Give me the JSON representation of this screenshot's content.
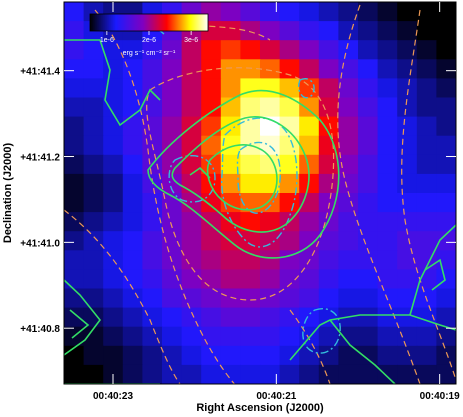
{
  "chart_data": {
    "type": "heatmap",
    "title": "",
    "xlabel": "Right Ascension (J2000)",
    "ylabel": "Declination (J2000)",
    "x_ticks": [
      {
        "label": "00:40:23",
        "value": 23.0
      },
      {
        "label": "00:40:21",
        "value": 21.0
      },
      {
        "label": "00:40:19",
        "value": 19.0
      }
    ],
    "y_ticks": [
      {
        "label": "+41:41.4",
        "value": 41.4
      },
      {
        "label": "+41:41.2",
        "value": 41.2
      },
      {
        "label": "+41:41.0",
        "value": 41.0
      },
      {
        "label": "+41:40.8",
        "value": 40.8
      }
    ],
    "xlim": [
      23.6,
      18.8
    ],
    "ylim": [
      40.67,
      41.56
    ],
    "colorbar": {
      "unit": "erg s⁻¹ cm⁻² sr⁻¹",
      "ticks": [
        {
          "label": "1e-6",
          "value": 1
        },
        {
          "label": "2e-6",
          "value": 2
        },
        {
          "label": "3e-6",
          "value": 3
        }
      ],
      "range": [
        0.6,
        3.4
      ],
      "colormap": [
        "#000000",
        "#1a1aff",
        "#8000c0",
        "#ff0000",
        "#ffff00",
        "#ffffff"
      ]
    },
    "grid_size": [
      20,
      20
    ],
    "intensity_grid": [
      [
        1.2,
        1.0,
        0.9,
        0.9,
        1.1,
        1.3,
        1.6,
        1.8,
        1.7,
        1.5,
        1.3,
        1.2,
        1.1,
        1.0,
        0.9,
        0.8,
        0.7,
        0.6,
        0.6,
        0.6
      ],
      [
        1.3,
        1.1,
        1.0,
        1.0,
        1.2,
        1.5,
        1.9,
        2.1,
        2.1,
        1.9,
        1.7,
        1.5,
        1.3,
        1.2,
        1.0,
        0.9,
        0.8,
        0.7,
        0.6,
        0.6
      ],
      [
        1.3,
        1.2,
        1.1,
        1.1,
        1.3,
        1.6,
        2.0,
        2.3,
        2.4,
        2.3,
        2.1,
        1.9,
        1.7,
        1.4,
        1.2,
        1.0,
        0.9,
        0.8,
        0.7,
        0.6
      ],
      [
        1.2,
        1.2,
        1.1,
        1.2,
        1.4,
        1.7,
        2.0,
        2.3,
        2.6,
        2.6,
        2.5,
        2.3,
        2.0,
        1.7,
        1.4,
        1.2,
        1.0,
        0.9,
        0.8,
        0.7
      ],
      [
        1.1,
        1.1,
        1.1,
        1.2,
        1.4,
        1.7,
        2.0,
        2.3,
        2.6,
        2.9,
        2.9,
        2.7,
        2.4,
        2.0,
        1.6,
        1.3,
        1.1,
        1.0,
        0.9,
        0.8
      ],
      [
        1.0,
        1.0,
        1.1,
        1.2,
        1.4,
        1.7,
        2.0,
        2.3,
        2.7,
        3.1,
        3.2,
        3.0,
        2.6,
        2.1,
        1.7,
        1.4,
        1.2,
        1.0,
        0.9,
        0.9
      ],
      [
        0.9,
        1.0,
        1.1,
        1.3,
        1.5,
        1.8,
        2.1,
        2.4,
        2.8,
        3.2,
        3.4,
        3.2,
        2.8,
        2.3,
        1.8,
        1.5,
        1.2,
        1.1,
        1.0,
        0.9
      ],
      [
        0.9,
        1.0,
        1.1,
        1.3,
        1.5,
        1.8,
        2.1,
        2.5,
        2.9,
        3.2,
        3.3,
        3.1,
        2.7,
        2.2,
        1.8,
        1.5,
        1.2,
        1.1,
        1.0,
        1.0
      ],
      [
        0.8,
        0.9,
        1.0,
        1.2,
        1.5,
        1.8,
        2.1,
        2.4,
        2.8,
        3.0,
        3.1,
        2.9,
        2.5,
        2.1,
        1.7,
        1.4,
        1.2,
        1.1,
        1.0,
        1.0
      ],
      [
        0.7,
        0.8,
        0.9,
        1.1,
        1.4,
        1.7,
        2.0,
        2.3,
        2.6,
        2.8,
        2.8,
        2.6,
        2.3,
        1.9,
        1.6,
        1.4,
        1.2,
        1.1,
        1.1,
        1.1
      ],
      [
        0.7,
        0.8,
        0.9,
        1.1,
        1.3,
        1.6,
        1.9,
        2.2,
        2.4,
        2.5,
        2.5,
        2.3,
        2.0,
        1.7,
        1.5,
        1.3,
        1.2,
        1.2,
        1.2,
        1.2
      ],
      [
        0.8,
        0.9,
        1.0,
        1.1,
        1.3,
        1.6,
        1.8,
        2.0,
        2.2,
        2.3,
        2.2,
        2.0,
        1.8,
        1.6,
        1.4,
        1.3,
        1.3,
        1.3,
        1.3,
        1.3
      ],
      [
        0.9,
        1.0,
        1.1,
        1.2,
        1.4,
        1.6,
        1.8,
        2.0,
        2.1,
        2.1,
        2.0,
        1.9,
        1.7,
        1.5,
        1.4,
        1.3,
        1.3,
        1.4,
        1.4,
        1.4
      ],
      [
        1.0,
        1.0,
        1.1,
        1.2,
        1.4,
        1.6,
        1.8,
        1.9,
        2.0,
        2.0,
        1.9,
        1.7,
        1.6,
        1.4,
        1.3,
        1.3,
        1.3,
        1.4,
        1.4,
        1.3
      ],
      [
        1.0,
        1.0,
        1.1,
        1.2,
        1.3,
        1.5,
        1.7,
        1.8,
        1.9,
        1.9,
        1.8,
        1.6,
        1.5,
        1.3,
        1.2,
        1.2,
        1.3,
        1.3,
        1.3,
        1.2
      ],
      [
        0.9,
        0.9,
        1.0,
        1.1,
        1.2,
        1.4,
        1.5,
        1.6,
        1.7,
        1.7,
        1.6,
        1.5,
        1.4,
        1.2,
        1.1,
        1.1,
        1.2,
        1.2,
        1.2,
        1.1
      ],
      [
        0.8,
        0.8,
        0.9,
        1.0,
        1.1,
        1.2,
        1.3,
        1.4,
        1.5,
        1.5,
        1.4,
        1.3,
        1.2,
        1.1,
        1.0,
        1.0,
        1.1,
        1.1,
        1.1,
        1.0
      ],
      [
        0.7,
        0.7,
        0.8,
        0.9,
        1.0,
        1.1,
        1.2,
        1.3,
        1.3,
        1.3,
        1.3,
        1.2,
        1.1,
        1.0,
        0.9,
        0.9,
        1.0,
        1.0,
        1.0,
        0.9
      ],
      [
        0.6,
        0.7,
        0.7,
        0.8,
        0.9,
        1.0,
        1.1,
        1.2,
        1.2,
        1.2,
        1.2,
        1.1,
        1.0,
        0.9,
        0.8,
        0.8,
        0.9,
        0.9,
        0.9,
        0.8
      ],
      [
        0.6,
        0.6,
        0.7,
        0.8,
        0.9,
        1.0,
        1.0,
        1.1,
        1.1,
        1.1,
        1.1,
        1.0,
        0.9,
        0.8,
        0.8,
        0.8,
        0.8,
        0.8,
        0.8,
        0.8
      ]
    ],
    "overlay_colors": {
      "green_solid": "#33dd66",
      "cyan_dashdot": "#33bbdd",
      "orange_dashed": "#ee9955"
    }
  }
}
